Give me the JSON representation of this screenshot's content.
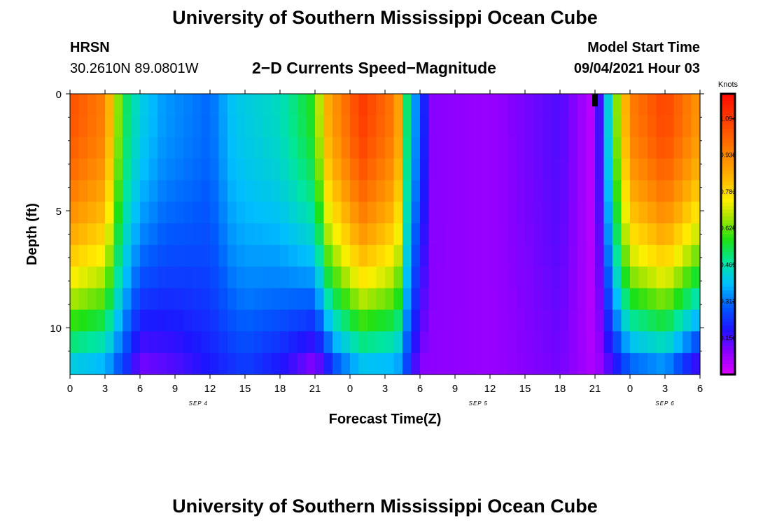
{
  "header": {
    "title": "University of Southern Mississippi Ocean Cube",
    "station": "HRSN",
    "coords": "30.2610N  89.0801W",
    "subtitle": "2−D Currents Speed−Magnitude",
    "model_label": "Model Start Time",
    "model_time": "09/04/2021 Hour 03"
  },
  "footer": {
    "title": "University of Southern Mississippi Ocean Cube"
  },
  "chart_data": {
    "type": "heatmap",
    "title": "2−D Currents Speed−Magnitude",
    "xlabel": "Forecast Time(Z)",
    "ylabel": "Depth (ft)",
    "x_ticks": [
      "0",
      "3",
      "6",
      "9",
      "12",
      "15",
      "18",
      "21",
      "0",
      "3",
      "6",
      "9",
      "12",
      "15",
      "18",
      "21",
      "0",
      "3",
      "6"
    ],
    "x_tick_hours": [
      0,
      3,
      6,
      9,
      12,
      15,
      18,
      21,
      24,
      27,
      30,
      33,
      36,
      39,
      42,
      45,
      48,
      51,
      54
    ],
    "date_labels": [
      {
        "text": "SEP 4",
        "hour": 11
      },
      {
        "text": "SEP 5",
        "hour": 35
      },
      {
        "text": "SEP 6",
        "hour": 51
      }
    ],
    "y_ticks": [
      "0",
      "5",
      "10"
    ],
    "y_tick_values": [
      0,
      5,
      10
    ],
    "ylim": [
      0,
      12
    ],
    "xlim": [
      0,
      54
    ],
    "colorbar": {
      "unit": "Knots",
      "ticks": [
        "1.094",
        "0.938",
        "0.781",
        "0.625",
        "0.469",
        "0.312",
        "0.156"
      ],
      "tick_values": [
        1.094,
        0.938,
        0.781,
        0.625,
        0.469,
        0.312,
        0.156
      ],
      "range": [
        0.0,
        1.2
      ]
    },
    "depth_rows": [
      0,
      1,
      2,
      3,
      4,
      5,
      6,
      7,
      8,
      9,
      10,
      11,
      12
    ],
    "surface_profile_knots": [
      {
        "hour": 0,
        "value": 1.05
      },
      {
        "hour": 3,
        "value": 0.95
      },
      {
        "hour": 4.5,
        "value": 0.55
      },
      {
        "hour": 6,
        "value": 0.42
      },
      {
        "hour": 8,
        "value": 0.35
      },
      {
        "hour": 12,
        "value": 0.3
      },
      {
        "hour": 14,
        "value": 0.4
      },
      {
        "hour": 18,
        "value": 0.45
      },
      {
        "hour": 21,
        "value": 0.58
      },
      {
        "hour": 22,
        "value": 0.85
      },
      {
        "hour": 25,
        "value": 1.1
      },
      {
        "hour": 28,
        "value": 0.95
      },
      {
        "hour": 29,
        "value": 0.45
      },
      {
        "hour": 31,
        "value": 0.1
      },
      {
        "hour": 36,
        "value": 0.08
      },
      {
        "hour": 42,
        "value": 0.15
      },
      {
        "hour": 45,
        "value": 0.03
      },
      {
        "hour": 46.5,
        "value": 0.55
      },
      {
        "hour": 48,
        "value": 0.95
      },
      {
        "hour": 51,
        "value": 1.08
      },
      {
        "hour": 54,
        "value": 0.9
      }
    ],
    "bottom_profile_knots": [
      {
        "hour": 0,
        "value": 0.42
      },
      {
        "hour": 3,
        "value": 0.38
      },
      {
        "hour": 5,
        "value": 0.22
      },
      {
        "hour": 6,
        "value": 0.12
      },
      {
        "hour": 9,
        "value": 0.15
      },
      {
        "hour": 12,
        "value": 0.2
      },
      {
        "hour": 15,
        "value": 0.25
      },
      {
        "hour": 18,
        "value": 0.2
      },
      {
        "hour": 21,
        "value": 0.1
      },
      {
        "hour": 23,
        "value": 0.3
      },
      {
        "hour": 25,
        "value": 0.4
      },
      {
        "hour": 28,
        "value": 0.38
      },
      {
        "hour": 30,
        "value": 0.1
      },
      {
        "hour": 36,
        "value": 0.08
      },
      {
        "hour": 42,
        "value": 0.12
      },
      {
        "hour": 45,
        "value": 0.05
      },
      {
        "hour": 48,
        "value": 0.3
      },
      {
        "hour": 51,
        "value": 0.35
      },
      {
        "hour": 54,
        "value": 0.15
      }
    ],
    "current_time_marker_hour": 45
  }
}
